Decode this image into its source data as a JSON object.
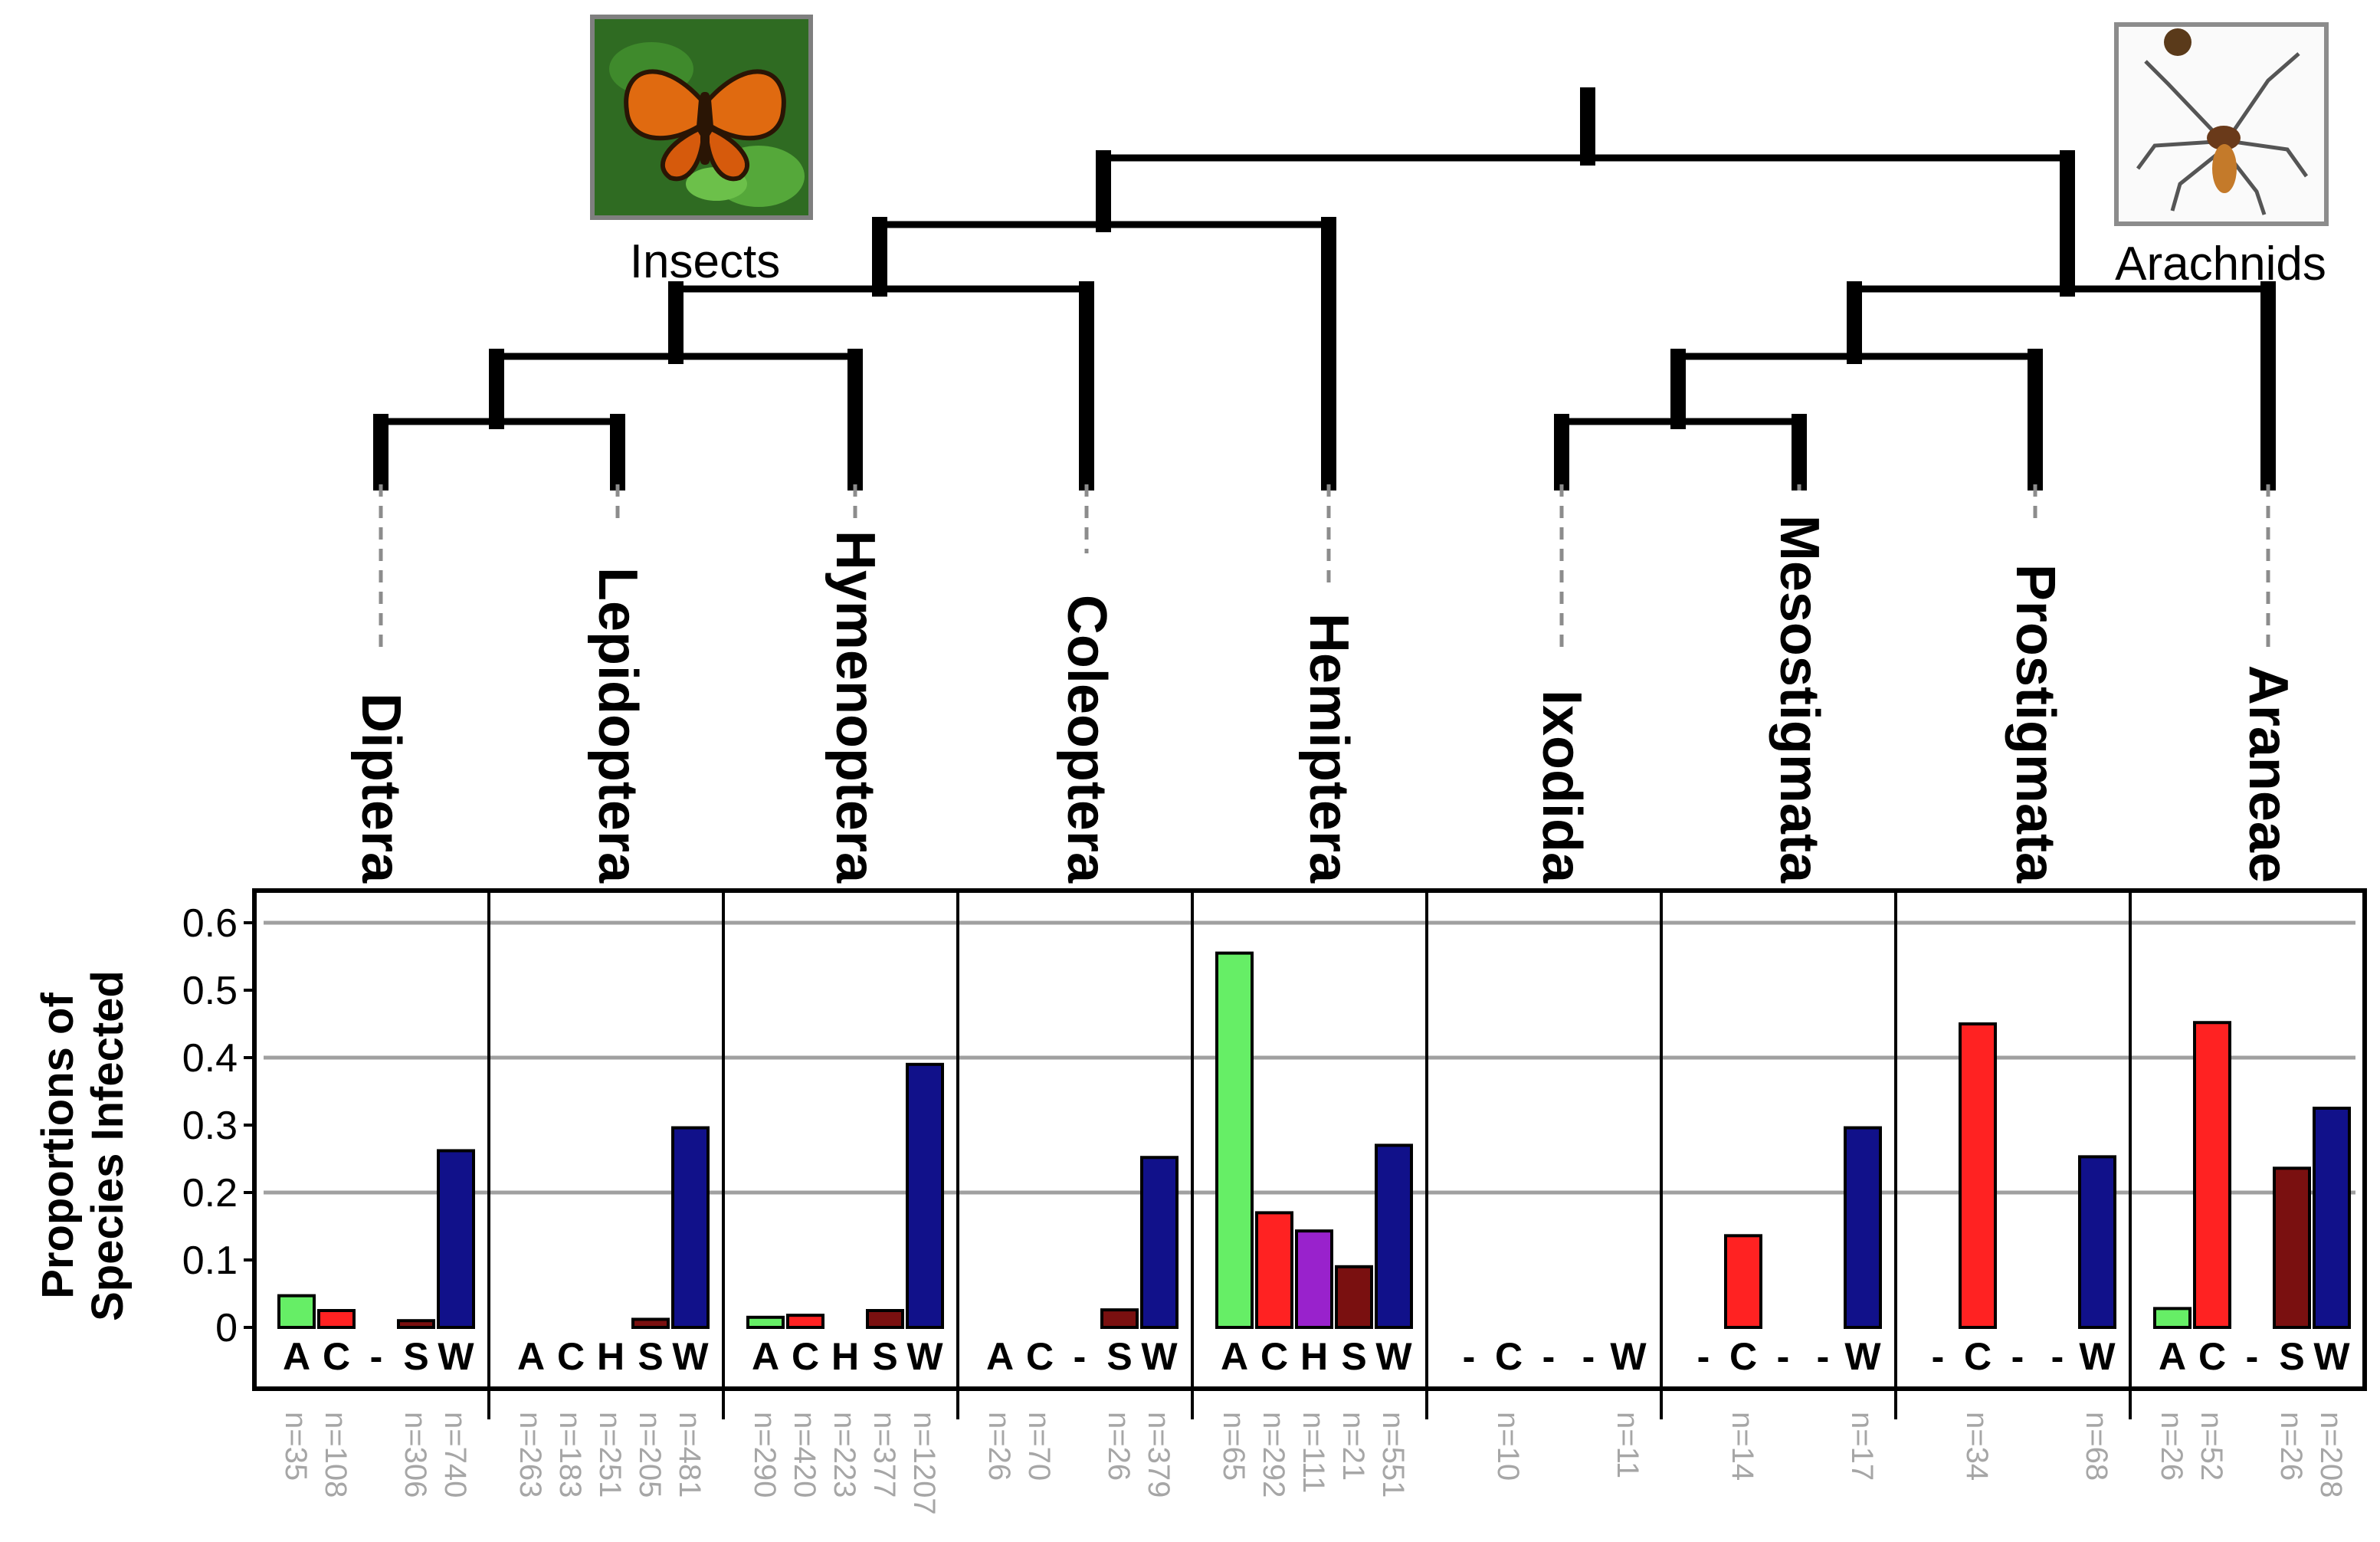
{
  "chart_data": {
    "type": "bar",
    "ylabel_lines": [
      "Proportions of",
      "Species Infected"
    ],
    "ylim": [
      0,
      0.6
    ],
    "yticks": [
      "0",
      "0.1",
      "0.2",
      "0.3",
      "0.4",
      "0.5",
      "0.6"
    ],
    "grid": true,
    "clades": [
      "Insects",
      "Arachnids"
    ],
    "categories": [
      "A",
      "C",
      "H",
      "S",
      "W"
    ],
    "colors": {
      "A": "#66ee66",
      "C": "#ff2222",
      "H": "#9922cc",
      "S": "#7a1010",
      "W": "#11118a"
    },
    "panels": [
      {
        "order": "Diptera",
        "labels": [
          "A",
          "C",
          "-",
          "S",
          "W"
        ],
        "values": [
          0.047,
          0.025,
          null,
          0.01,
          0.262
        ],
        "n": [
          "n=35",
          "n=108",
          "",
          "n=306",
          "n=740"
        ]
      },
      {
        "order": "Lepidoptera",
        "labels": [
          "A",
          "C",
          "H",
          "S",
          "W"
        ],
        "values": [
          null,
          null,
          null,
          0.012,
          0.296
        ],
        "n": [
          "n=263",
          "n=183",
          "n=251",
          "n=205",
          "n=481"
        ]
      },
      {
        "order": "Hymenoptera",
        "labels": [
          "A",
          "C",
          "H",
          "S",
          "W"
        ],
        "values": [
          0.015,
          0.018,
          null,
          0.025,
          0.39
        ],
        "n": [
          "n=290",
          "n=420",
          "n=223",
          "n=377",
          "n=1207"
        ]
      },
      {
        "order": "Coleoptera",
        "labels": [
          "A",
          "C",
          "-",
          "S",
          "W"
        ],
        "values": [
          null,
          null,
          null,
          0.026,
          0.252
        ],
        "n": [
          "n=26",
          "n=70",
          "",
          "n=26",
          "n=379"
        ]
      },
      {
        "order": "Hemiptera",
        "labels": [
          "A",
          "C",
          "H",
          "S",
          "W"
        ],
        "values": [
          0.555,
          0.17,
          0.143,
          0.09,
          0.27
        ],
        "n": [
          "n=65",
          "n=292",
          "n=111",
          "n=21",
          "n=551"
        ]
      },
      {
        "order": "Ixodida",
        "labels": [
          "-",
          "C",
          "-",
          "-",
          "W"
        ],
        "values": [
          null,
          null,
          null,
          null,
          null
        ],
        "n": [
          "",
          "n=10",
          "",
          "",
          "n=11"
        ]
      },
      {
        "order": "Mesostigmata",
        "labels": [
          "-",
          "C",
          "-",
          "-",
          "W"
        ],
        "values": [
          null,
          0.136,
          null,
          null,
          0.296
        ],
        "n": [
          "",
          "n=14",
          "",
          "",
          "n=17"
        ]
      },
      {
        "order": "Prostigmata",
        "labels": [
          "-",
          "C",
          "-",
          "-",
          "W"
        ],
        "values": [
          null,
          0.45,
          null,
          null,
          0.253
        ],
        "n": [
          "",
          "n=34",
          "",
          "",
          "n=68"
        ]
      },
      {
        "order": "Araneae",
        "labels": [
          "A",
          "C",
          "-",
          "S",
          "W"
        ],
        "values": [
          0.028,
          0.452,
          null,
          0.236,
          0.325
        ],
        "n": [
          "n=26",
          "n=52",
          "",
          "n=26",
          "n=208"
        ]
      }
    ]
  }
}
